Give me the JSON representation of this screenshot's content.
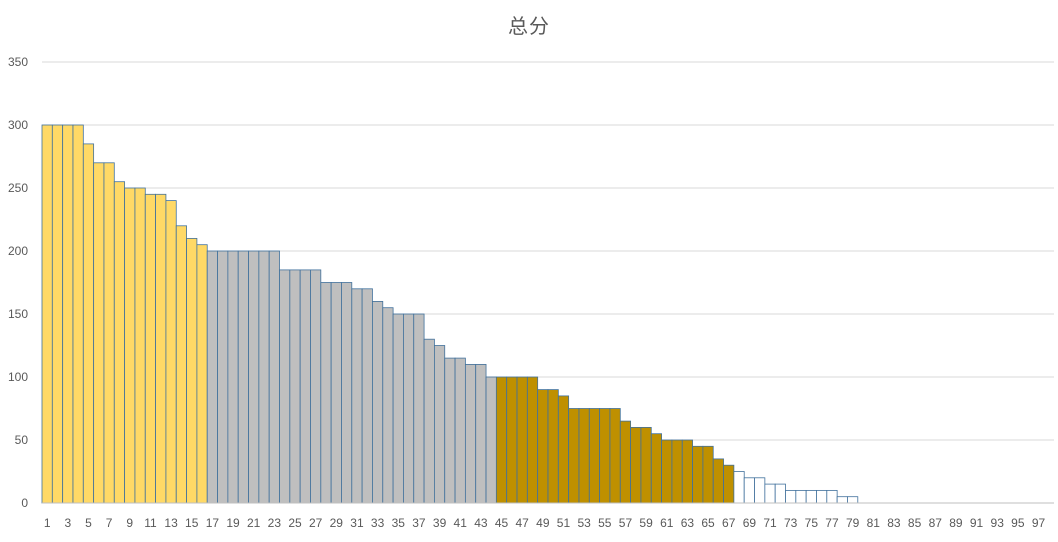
{
  "chart_data": {
    "type": "bar",
    "title": "总分",
    "xlabel": "",
    "ylabel": "",
    "ylim": [
      0,
      350
    ],
    "yticks": [
      0,
      50,
      100,
      150,
      200,
      250,
      300,
      350
    ],
    "x_tick_labels": [
      "1",
      "3",
      "5",
      "7",
      "9",
      "11",
      "13",
      "15",
      "17",
      "19",
      "21",
      "23",
      "25",
      "27",
      "29",
      "31",
      "33",
      "35",
      "37",
      "39",
      "41",
      "43",
      "45",
      "47",
      "49",
      "51",
      "53",
      "55",
      "57",
      "59",
      "61",
      "63",
      "65",
      "67",
      "69",
      "71",
      "73",
      "75",
      "77",
      "79",
      "81",
      "83",
      "85",
      "87",
      "89",
      "91",
      "93",
      "95",
      "97"
    ],
    "grid": "horizontal",
    "legend": "none",
    "categories": [
      1,
      2,
      3,
      4,
      5,
      6,
      7,
      8,
      9,
      10,
      11,
      12,
      13,
      14,
      15,
      16,
      17,
      18,
      19,
      20,
      21,
      22,
      23,
      24,
      25,
      26,
      27,
      28,
      29,
      30,
      31,
      32,
      33,
      34,
      35,
      36,
      37,
      38,
      39,
      40,
      41,
      42,
      43,
      44,
      45,
      46,
      47,
      48,
      49,
      50,
      51,
      52,
      53,
      54,
      55,
      56,
      57,
      58,
      59,
      60,
      61,
      62,
      63,
      64,
      65,
      66,
      67,
      68,
      69,
      70,
      71,
      72,
      73,
      74,
      75,
      76,
      77,
      78,
      79,
      80,
      81,
      82,
      83,
      84,
      85,
      86,
      87,
      88,
      89,
      90,
      91,
      92,
      93,
      94,
      95,
      96,
      97,
      98
    ],
    "values": [
      300,
      300,
      300,
      300,
      285,
      270,
      270,
      255,
      250,
      250,
      245,
      245,
      240,
      220,
      210,
      205,
      200,
      200,
      200,
      200,
      200,
      200,
      200,
      185,
      185,
      185,
      185,
      175,
      175,
      175,
      170,
      170,
      160,
      155,
      150,
      150,
      150,
      130,
      125,
      115,
      115,
      110,
      110,
      100,
      100,
      100,
      100,
      100,
      90,
      90,
      85,
      75,
      75,
      75,
      75,
      75,
      65,
      60,
      60,
      55,
      50,
      50,
      50,
      45,
      45,
      35,
      30,
      25,
      20,
      20,
      15,
      15,
      10,
      10,
      10,
      10,
      10,
      5,
      5,
      0,
      0,
      0,
      0,
      0,
      0,
      0,
      0,
      0,
      0,
      0,
      0,
      0,
      0,
      0,
      0,
      0,
      0,
      0
    ],
    "color_groups": [
      {
        "from": 1,
        "to": 16,
        "color": "#FFD966"
      },
      {
        "from": 17,
        "to": 44,
        "color": "#BFBFBF"
      },
      {
        "from": 45,
        "to": 67,
        "color": "#BF9000"
      },
      {
        "from": 68,
        "to": 98,
        "color": "#FFFFFF"
      }
    ],
    "bar_outline_color": "#41719C",
    "gridline_color": "#D9D9D9",
    "axis_line_color": "#BFBFBF"
  }
}
